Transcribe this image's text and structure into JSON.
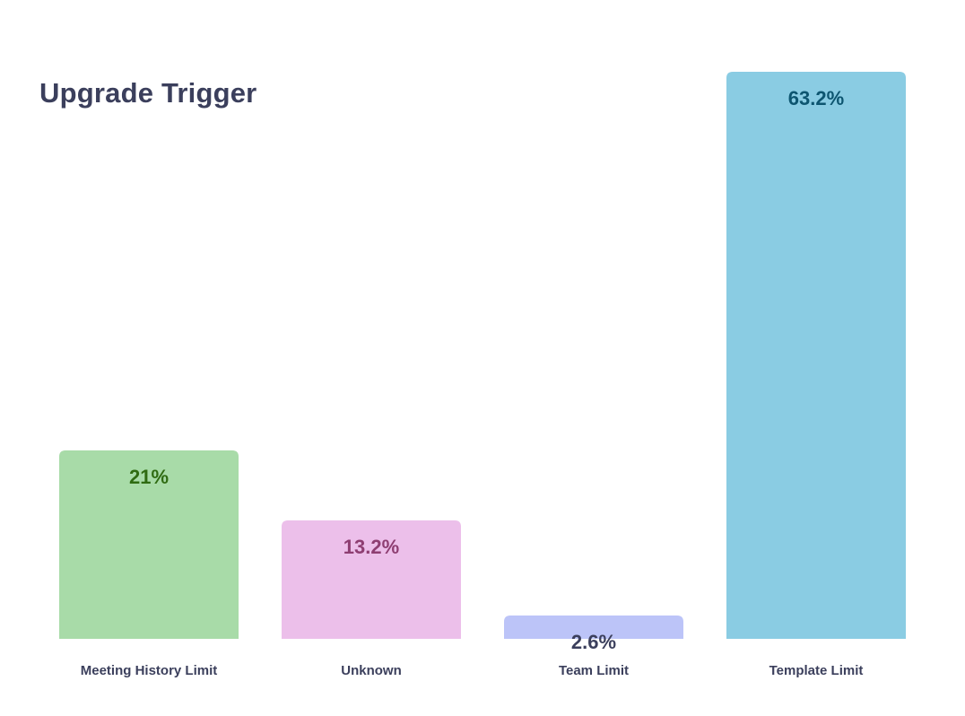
{
  "chart_data": {
    "type": "bar",
    "title": "Upgrade Trigger",
    "xlabel": "",
    "ylabel": "",
    "categories": [
      "Meeting History Limit",
      "Unknown",
      "Team Limit",
      "Template Limit"
    ],
    "values": [
      21,
      13.2,
      2.6,
      63.2
    ],
    "value_labels": [
      "21%",
      "13.2%",
      "2.6%",
      "63.2%"
    ],
    "bar_colors": [
      "#a8dba8",
      "#ecbfea",
      "#bcc4f8",
      "#8acce3"
    ],
    "label_colors": [
      "#2f6b12",
      "#8e3e72",
      "#3b3f5c",
      "#0d5570"
    ],
    "ylim": [
      0,
      63.2
    ],
    "grid": false,
    "legend": "none"
  }
}
